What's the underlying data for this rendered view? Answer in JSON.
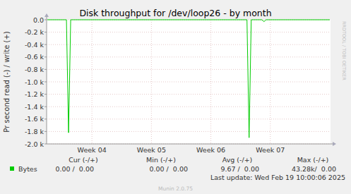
{
  "chart_data": {
    "type": "line",
    "title": "Disk throughput for /dev/loop26 - by month",
    "y_label": "Pr second read (-) / write (+)",
    "watermark": "RRDTOOL / TOBI OETIKER",
    "footer": "Last update: Wed Feb 19 10:00:06 2025",
    "credit": "Munin 2.0.75",
    "legend_headers": [
      "Cur (-/+)",
      "Min (-/+)",
      "Avg (-/+)",
      "Max (-/+)"
    ],
    "legend_values": [
      "0.00 /  0.00",
      "0.00 /  0.00",
      "9.67 /  0.00",
      "43.28k/  0.00"
    ],
    "grid": true,
    "ylim": [
      -2000,
      0
    ],
    "yticks": [
      {
        "value": -2000,
        "label": "-2.0 k"
      },
      {
        "value": -1800,
        "label": "-1.8 k"
      },
      {
        "value": -1600,
        "label": "-1.6 k"
      },
      {
        "value": -1400,
        "label": "-1.4 k"
      },
      {
        "value": -1200,
        "label": "-1.2 k"
      },
      {
        "value": -1000,
        "label": "-1.0 k"
      },
      {
        "value": -800,
        "label": "-0.8 k"
      },
      {
        "value": -600,
        "label": "-0.6 k"
      },
      {
        "value": -400,
        "label": "-0.4 k"
      },
      {
        "value": -200,
        "label": "-0.2 k"
      },
      {
        "value": 0,
        "label": "0.0"
      }
    ],
    "categories": [
      null,
      null,
      null,
      null,
      null,
      null,
      null,
      null,
      null,
      null,
      null,
      null,
      null,
      null,
      null,
      null,
      null,
      null,
      null,
      null,
      null,
      "Week 04",
      null,
      null,
      null,
      null,
      null,
      null,
      null,
      null,
      null,
      null,
      null,
      null,
      null,
      null,
      null,
      null,
      null,
      null,
      null,
      null,
      null,
      null,
      null,
      null,
      null,
      null,
      null,
      "Week 05",
      null,
      null,
      null,
      null,
      null,
      null,
      null,
      null,
      null,
      null,
      null,
      null,
      null,
      null,
      null,
      null,
      null,
      null,
      null,
      null,
      null,
      null,
      null,
      null,
      null,
      null,
      null,
      "Week 06",
      null,
      null,
      null,
      null,
      null,
      null,
      null,
      null,
      null,
      null,
      null,
      null,
      null,
      null,
      null,
      null,
      null,
      null,
      null,
      null,
      null,
      null,
      null,
      null,
      null,
      null,
      null,
      "Week 07",
      null,
      null,
      null,
      null,
      null,
      null,
      null,
      null,
      null,
      null,
      null,
      null,
      null,
      null,
      null,
      null,
      null,
      null,
      null,
      null,
      null,
      null,
      null,
      null,
      null,
      null,
      null,
      null
    ],
    "series": [
      {
        "name": "Bytes",
        "color": "#00cc00",
        "values": [
          0,
          0,
          0,
          0,
          0,
          0,
          0,
          0,
          0,
          0,
          -1820,
          0,
          0,
          0,
          0,
          0,
          0,
          0,
          0,
          0,
          0,
          0,
          0,
          0,
          0,
          0,
          0,
          0,
          0,
          0,
          0,
          0,
          0,
          0,
          0,
          0,
          0,
          0,
          0,
          0,
          0,
          0,
          0,
          0,
          0,
          0,
          0,
          0,
          0,
          0,
          0,
          0,
          0,
          0,
          0,
          0,
          0,
          0,
          0,
          0,
          0,
          0,
          0,
          0,
          0,
          0,
          0,
          0,
          0,
          0,
          0,
          0,
          0,
          0,
          0,
          0,
          0,
          0,
          0,
          0,
          0,
          0,
          0,
          0,
          0,
          0,
          0,
          0,
          0,
          0,
          0,
          0,
          0,
          0,
          0,
          -1900,
          0,
          0,
          0,
          0,
          0,
          0,
          -30,
          0,
          0,
          0,
          0,
          0,
          0,
          0,
          0,
          0,
          0,
          0,
          0,
          0,
          0,
          0,
          0,
          0,
          0,
          0,
          0,
          0,
          0,
          0,
          0,
          0,
          0,
          0,
          0,
          0,
          0,
          0
        ]
      }
    ]
  }
}
